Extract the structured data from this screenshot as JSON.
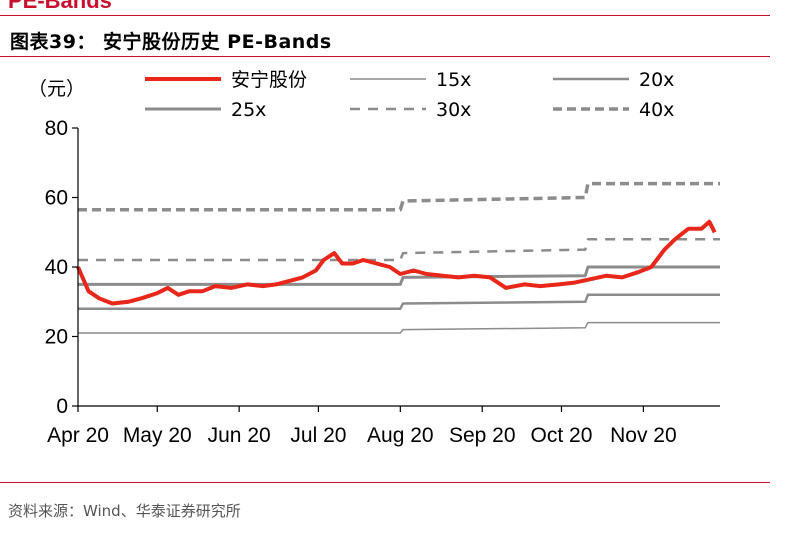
{
  "header": {
    "top_strip_text": "PE-Bands",
    "title": "图表39：  安宁股份历史 PE-Bands"
  },
  "source": "资料来源：Wind、华泰证券研究所",
  "colors": {
    "stock": "#e8271a",
    "band": "#8c8c8c",
    "accent_rule": "#c8102e"
  },
  "chart_data": {
    "type": "line",
    "unit_label": "（元）",
    "ylim": [
      0,
      80
    ],
    "yticks": [
      0,
      20,
      40,
      60,
      80
    ],
    "xticks": [
      "Apr 20",
      "May 20",
      "Jun 20",
      "Jul 20",
      "Aug 20",
      "Sep 20",
      "Oct 20",
      "Nov 20"
    ],
    "x_range": [
      "2020-04-01",
      "2020-11-30"
    ],
    "legend": [
      {
        "name": "安宁股份",
        "style": "red-thick"
      },
      {
        "name": "15x",
        "style": "gray-thin"
      },
      {
        "name": "20x",
        "style": "gray-medium"
      },
      {
        "name": "25x",
        "style": "gray-thick"
      },
      {
        "name": "30x",
        "style": "gray-dash"
      },
      {
        "name": "40x",
        "style": "gray-dash-thick"
      }
    ],
    "series": [
      {
        "name": "安宁股份",
        "x": [
          "2020-04-01",
          "2020-04-05",
          "2020-04-09",
          "2020-04-14",
          "2020-04-20",
          "2020-04-25",
          "2020-05-01",
          "2020-05-05",
          "2020-05-09",
          "2020-05-13",
          "2020-05-18",
          "2020-05-23",
          "2020-05-29",
          "2020-06-04",
          "2020-06-10",
          "2020-06-15",
          "2020-06-20",
          "2020-06-25",
          "2020-06-30",
          "2020-07-03",
          "2020-07-07",
          "2020-07-10",
          "2020-07-14",
          "2020-07-18",
          "2020-07-23",
          "2020-07-28",
          "2020-08-01",
          "2020-08-06",
          "2020-08-11",
          "2020-08-17",
          "2020-08-23",
          "2020-08-29",
          "2020-09-04",
          "2020-09-10",
          "2020-09-17",
          "2020-09-23",
          "2020-09-30",
          "2020-10-06",
          "2020-10-12",
          "2020-10-18",
          "2020-10-24",
          "2020-10-30",
          "2020-11-04",
          "2020-11-09",
          "2020-11-13",
          "2020-11-18",
          "2020-11-23",
          "2020-11-26",
          "2020-11-28"
        ],
        "values": [
          40,
          33,
          31,
          29.5,
          30,
          31,
          32.5,
          34,
          32,
          33,
          33,
          34.5,
          34,
          35,
          34.5,
          35,
          36,
          37,
          39,
          42,
          44,
          41,
          41,
          42,
          41,
          40,
          38,
          39,
          38,
          37.5,
          37,
          37.5,
          37,
          34,
          35,
          34.5,
          35,
          35.5,
          36.5,
          37.5,
          37,
          38.5,
          40,
          45,
          48,
          51,
          51,
          53,
          50
        ]
      },
      {
        "name": "15x",
        "x": [
          "2020-04-01",
          "2020-08-01",
          "2020-08-02",
          "2020-10-10",
          "2020-10-11",
          "2020-11-30"
        ],
        "values": [
          21,
          21,
          22,
          22.5,
          24,
          24
        ]
      },
      {
        "name": "20x",
        "x": [
          "2020-04-01",
          "2020-08-01",
          "2020-08-02",
          "2020-10-10",
          "2020-10-11",
          "2020-11-30"
        ],
        "values": [
          28,
          28,
          29.5,
          30,
          32,
          32
        ]
      },
      {
        "name": "25x",
        "x": [
          "2020-04-01",
          "2020-08-01",
          "2020-08-02",
          "2020-10-10",
          "2020-10-11",
          "2020-11-30"
        ],
        "values": [
          35,
          35,
          37,
          37.5,
          40,
          40
        ]
      },
      {
        "name": "30x",
        "x": [
          "2020-04-01",
          "2020-08-01",
          "2020-08-02",
          "2020-10-10",
          "2020-10-11",
          "2020-11-30"
        ],
        "values": [
          42,
          42,
          44,
          45,
          48,
          48
        ]
      },
      {
        "name": "40x",
        "x": [
          "2020-04-01",
          "2020-08-01",
          "2020-08-02",
          "2020-10-10",
          "2020-10-11",
          "2020-11-30"
        ],
        "values": [
          56.5,
          56.5,
          59,
          60,
          64,
          64
        ]
      }
    ]
  }
}
